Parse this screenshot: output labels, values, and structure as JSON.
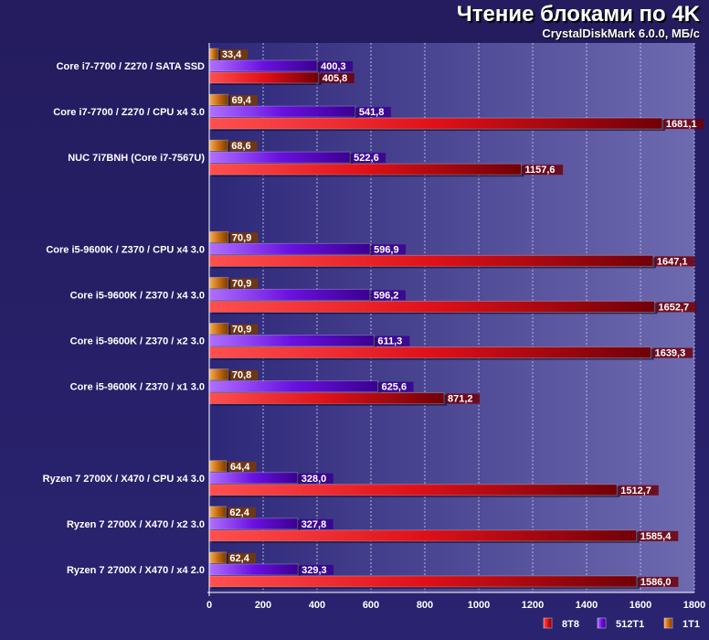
{
  "title": "Чтение блоками по 4K",
  "subtitle": "CrystalDiskMark 6.0.0, МБ/с",
  "chart_data": {
    "type": "bar",
    "orientation": "horizontal",
    "categories": [
      "Core i7-7700 / Z270 / SATA SSD",
      "Core i7-7700 / Z270 / CPU x4 3.0",
      "NUC 7i7BNH (Core i7-7567U)",
      "",
      "Core i5-9600K / Z370 / CPU x4 3.0",
      "Core i5-9600K / Z370 / x4 3.0",
      "Core i5-9600K / Z370 / x2 3.0",
      "Core i5-9600K / Z370 / x1 3.0",
      "",
      "Ryzen 7 2700X / X470 / CPU x4 3.0",
      "Ryzen 7 2700X / X470 / x2 3.0",
      "Ryzen 7 2700X / X470 / x4 2.0"
    ],
    "series": [
      {
        "name": "1T1",
        "color": "#e8901e",
        "values": [
          33.4,
          69.4,
          68.6,
          null,
          70.9,
          70.9,
          70.9,
          70.8,
          null,
          64.4,
          62.4,
          62.4
        ],
        "labels": [
          "33,4",
          "69,4",
          "68,6",
          "",
          "70,9",
          "70,9",
          "70,9",
          "70,8",
          "",
          "64,4",
          "62,4",
          "62,4"
        ]
      },
      {
        "name": "512T1",
        "color": "#7a22ee",
        "values": [
          400.3,
          541.8,
          522.6,
          null,
          596.9,
          596.2,
          611.3,
          625.6,
          null,
          328.0,
          327.8,
          329.3
        ],
        "labels": [
          "400,3",
          "541,8",
          "522,6",
          "",
          "596,9",
          "596,2",
          "611,3",
          "625,6",
          "",
          "328,0",
          "327,8",
          "329,3"
        ]
      },
      {
        "name": "8T8",
        "color": "#e8141e",
        "values": [
          405.8,
          1681.1,
          1157.6,
          null,
          1647.1,
          1652.7,
          1639.3,
          871.2,
          null,
          1512.7,
          1585.4,
          1586.0
        ],
        "labels": [
          "405,8",
          "1681,1",
          "1157,6",
          "",
          "1647,1",
          "1652,7",
          "1639,3",
          "871,2",
          "",
          "1512,7",
          "1585,4",
          "1586,0"
        ]
      }
    ],
    "xlim": [
      0,
      1800
    ],
    "xticks": [
      "0",
      "200",
      "400",
      "600",
      "800",
      "1000",
      "1200",
      "1400",
      "1600",
      "1800"
    ],
    "xlabel": "",
    "ylabel": "",
    "grid": true,
    "legend": {
      "position": "bottom-right",
      "order": [
        "8T8",
        "512T1",
        "1T1"
      ]
    }
  }
}
